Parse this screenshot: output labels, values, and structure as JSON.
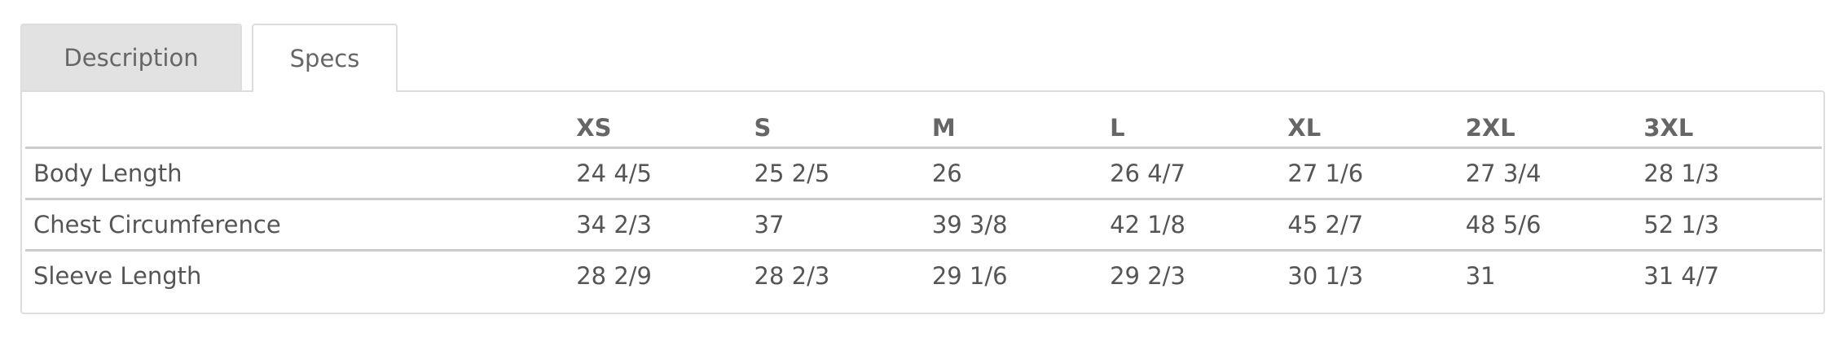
{
  "tabs": [
    {
      "label": "Description",
      "active": false
    },
    {
      "label": "Specs",
      "active": true
    }
  ],
  "specs_table": {
    "columns": [
      "",
      "XS",
      "S",
      "M",
      "L",
      "XL",
      "2XL",
      "3XL"
    ],
    "rows": [
      {
        "label": "Body Length",
        "values": [
          "24 4/5",
          "25 2/5",
          "26",
          "26 4/7",
          "27 1/6",
          "27 3/4",
          "28 1/3"
        ]
      },
      {
        "label": "Chest Circumference",
        "values": [
          "34 2/3",
          "37",
          "39 3/8",
          "42 1/8",
          "45 2/7",
          "48 5/6",
          "52 1/3"
        ]
      },
      {
        "label": "Sleeve Length",
        "values": [
          "28 2/9",
          "28 2/3",
          "29 1/6",
          "29 2/3",
          "30 1/3",
          "31",
          "31 4/7"
        ]
      }
    ]
  }
}
